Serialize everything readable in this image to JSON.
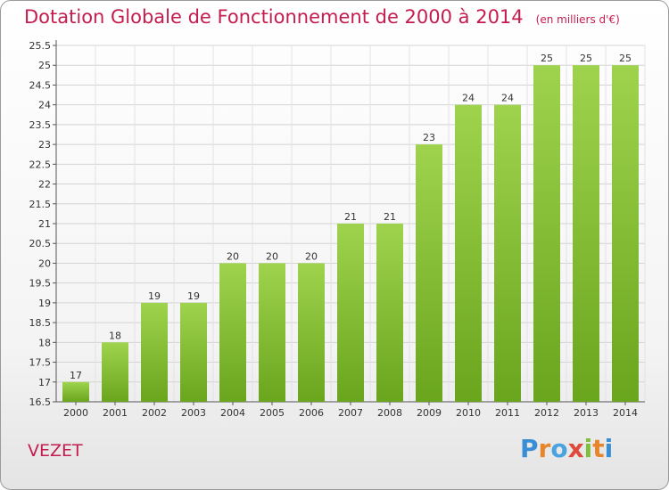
{
  "chart_data": {
    "type": "bar",
    "title": "Dotation Globale de Fonctionnement de 2000 à 2014",
    "subtitle": "(en milliers d'€)",
    "categories": [
      "2000",
      "2001",
      "2002",
      "2003",
      "2004",
      "2005",
      "2006",
      "2007",
      "2008",
      "2009",
      "2010",
      "2011",
      "2012",
      "2013",
      "2014"
    ],
    "values": [
      17,
      18,
      19,
      19,
      20,
      20,
      20,
      21,
      21,
      23,
      24,
      24,
      25,
      25,
      25
    ],
    "value_labels": [
      "17",
      "18",
      "19",
      "19",
      "20",
      "20",
      "20",
      "21",
      "21",
      "23",
      "24",
      "24",
      "25",
      "25",
      "25"
    ],
    "ylim": [
      16.5,
      25.5
    ],
    "yticks": [
      16.5,
      17,
      17.5,
      18,
      18.5,
      19,
      19.5,
      20,
      20.5,
      21,
      21.5,
      22,
      22.5,
      23,
      23.5,
      24,
      24.5,
      25,
      25.5
    ],
    "ytick_labels": [
      "16.5",
      "17",
      "17.5",
      "18",
      "18.5",
      "19",
      "19.5",
      "20",
      "20.5",
      "21",
      "21.5",
      "22",
      "22.5",
      "23",
      "23.5",
      "24",
      "24.5",
      "25",
      "25.5"
    ],
    "xlabel": "",
    "ylabel": "",
    "grid": true,
    "bar_color_top": "#9fd34e",
    "bar_color_bottom": "#6aa51e"
  },
  "footer": {
    "commune": "VEZET",
    "logo_letters": [
      "P",
      "r",
      "o",
      "x",
      "i",
      "t",
      "i"
    ]
  },
  "colors": {
    "title": "#c41c4e"
  }
}
